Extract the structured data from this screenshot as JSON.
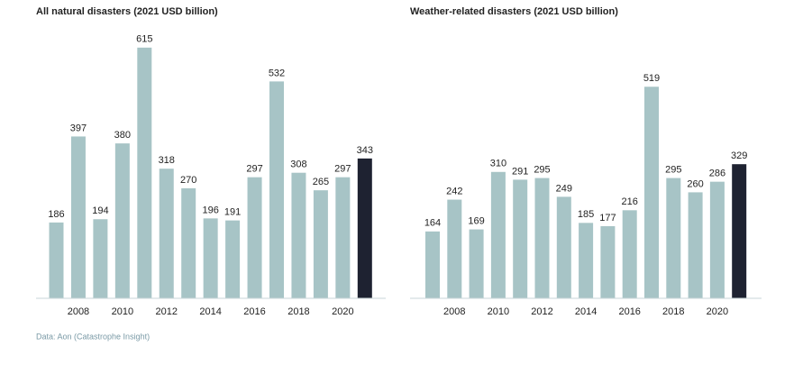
{
  "chart_data": [
    {
      "type": "bar",
      "title": "All natural disasters (2021 USD billion)",
      "categories": [
        null,
        "2008",
        null,
        "2010",
        null,
        "2012",
        null,
        "2014",
        null,
        "2016",
        null,
        "2018",
        null,
        "2020",
        null
      ],
      "values": [
        186,
        397,
        194,
        380,
        615,
        318,
        270,
        196,
        191,
        297,
        532,
        308,
        265,
        297,
        343
      ],
      "colors": [
        "#a7c4c6",
        "#a7c4c6",
        "#a7c4c6",
        "#a7c4c6",
        "#a7c4c6",
        "#a7c4c6",
        "#a7c4c6",
        "#a7c4c6",
        "#a7c4c6",
        "#a7c4c6",
        "#a7c4c6",
        "#a7c4c6",
        "#a7c4c6",
        "#a7c4c6",
        "#1e2231"
      ],
      "ylim": [
        0,
        650
      ]
    },
    {
      "type": "bar",
      "title": "Weather-related disasters (2021 USD billion)",
      "categories": [
        null,
        "2008",
        null,
        "2010",
        null,
        "2012",
        null,
        "2014",
        null,
        "2016",
        null,
        "2018",
        null,
        "2020",
        null
      ],
      "values": [
        164,
        242,
        169,
        310,
        291,
        295,
        249,
        185,
        177,
        216,
        519,
        295,
        260,
        286,
        329
      ],
      "colors": [
        "#a7c4c6",
        "#a7c4c6",
        "#a7c4c6",
        "#a7c4c6",
        "#a7c4c6",
        "#a7c4c6",
        "#a7c4c6",
        "#a7c4c6",
        "#a7c4c6",
        "#a7c4c6",
        "#a7c4c6",
        "#a7c4c6",
        "#a7c4c6",
        "#a7c4c6",
        "#1e2231"
      ],
      "ylim": [
        0,
        650
      ]
    }
  ],
  "footnote": "Data: Aon (Catastrophe Insight)"
}
